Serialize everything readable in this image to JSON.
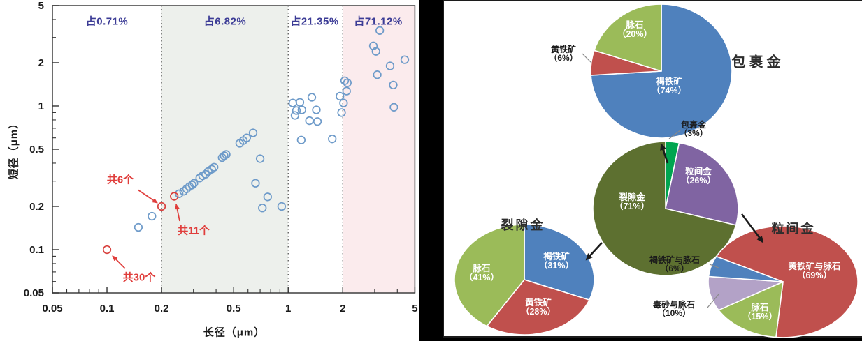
{
  "chart_data": [
    {
      "type": "scatter",
      "xlabel": "长径（μm）",
      "ylabel": "短径（μm）",
      "xscale": "log",
      "yscale": "log",
      "xlim": [
        0.05,
        5
      ],
      "ylim": [
        0.05,
        5
      ],
      "ticks": [
        0.05,
        0.1,
        0.2,
        0.5,
        1,
        2,
        5
      ],
      "tick_labels": [
        "0.05",
        "0.1",
        "0.2",
        "0.5",
        "1",
        "2",
        "5"
      ],
      "minor_ticks": [
        0.06,
        0.07,
        0.08,
        0.09,
        0.3,
        0.4,
        0.6,
        0.7,
        0.8,
        0.9,
        3,
        4
      ],
      "zone_boundaries": [
        0.2,
        1,
        2
      ],
      "zones": [
        {
          "label": "占0.71%",
          "x_range": [
            0.05,
            0.2
          ],
          "bg": "#ffffff"
        },
        {
          "label": "占6.82%",
          "x_range": [
            0.2,
            1
          ],
          "bg": "#edf0ec"
        },
        {
          "label": "占21.35%",
          "x_range": [
            1,
            2
          ],
          "bg": "#ffffff"
        },
        {
          "label": "占71.12%",
          "x_range": [
            2,
            5
          ],
          "bg": "#fbebed"
        }
      ],
      "zone_label_color": "#3c3c96",
      "series": [
        {
          "name": "blue-points",
          "color": "#6d9ac9",
          "points": [
            [
              0.149,
              0.143
            ],
            [
              0.177,
              0.171
            ],
            [
              0.25,
              0.245
            ],
            [
              0.265,
              0.255
            ],
            [
              0.275,
              0.265
            ],
            [
              0.285,
              0.275
            ],
            [
              0.295,
              0.282
            ],
            [
              0.302,
              0.29
            ],
            [
              0.325,
              0.315
            ],
            [
              0.337,
              0.327
            ],
            [
              0.35,
              0.335
            ],
            [
              0.362,
              0.35
            ],
            [
              0.378,
              0.363
            ],
            [
              0.39,
              0.375
            ],
            [
              0.432,
              0.437
            ],
            [
              0.443,
              0.45
            ],
            [
              0.455,
              0.46
            ],
            [
              0.54,
              0.55
            ],
            [
              0.565,
              0.575
            ],
            [
              0.59,
              0.6
            ],
            [
              0.64,
              0.65
            ],
            [
              0.66,
              0.29
            ],
            [
              0.7,
              0.43
            ],
            [
              0.72,
              0.195
            ],
            [
              0.77,
              0.233
            ],
            [
              0.92,
              0.2
            ],
            [
              1.06,
              1.05
            ],
            [
              1.16,
              1.06
            ],
            [
              1.35,
              1.15
            ],
            [
              1.11,
              0.93
            ],
            [
              1.19,
              0.94
            ],
            [
              1.09,
              0.86
            ],
            [
              1.43,
              0.94
            ],
            [
              1.31,
              0.79
            ],
            [
              1.45,
              0.78
            ],
            [
              1.18,
              0.58
            ],
            [
              1.75,
              0.59
            ],
            [
              1.93,
              1.17
            ],
            [
              1.97,
              0.9
            ],
            [
              2.02,
              1.05
            ],
            [
              2.1,
              1.27
            ],
            [
              2.12,
              1.45
            ],
            [
              2.05,
              1.5
            ],
            [
              3.2,
              3.35
            ],
            [
              2.95,
              2.62
            ],
            [
              3.05,
              2.4
            ],
            [
              4.4,
              2.1
            ],
            [
              3.65,
              1.9
            ],
            [
              3.1,
              1.65
            ],
            [
              3.8,
              1.4
            ],
            [
              3.83,
              0.98
            ]
          ]
        },
        {
          "name": "red-points",
          "color": "#d8413e",
          "points": [
            [
              0.1,
              0.1
            ],
            [
              0.2,
              0.2
            ],
            [
              0.235,
              0.235
            ]
          ]
        }
      ],
      "annotations": [
        {
          "text": "共6个",
          "points_to": [
            0.2,
            0.2
          ]
        },
        {
          "text": "共11个",
          "points_to": [
            0.235,
            0.235
          ]
        },
        {
          "text": "共30个",
          "points_to": [
            0.1,
            0.1
          ]
        }
      ],
      "annotation_color": "#e03e3c"
    },
    {
      "type": "pie",
      "id": "pie-top",
      "title": "包裹金",
      "start_angle": 0,
      "slices": [
        {
          "name": "褐铁矿",
          "pct": 74,
          "pct_label": "（74%）",
          "color": "#4f81bd"
        },
        {
          "name": "黄铁矿",
          "pct": 6,
          "pct_label": "（6%）",
          "color": "#c0504d"
        },
        {
          "name": "脉石",
          "pct": 20,
          "pct_label": "（20%）",
          "color": "#9bbb59"
        }
      ]
    },
    {
      "type": "pie",
      "id": "pie-center",
      "title": "",
      "start_angle": 0,
      "slices": [
        {
          "name": "包裹金",
          "pct": 3,
          "pct_label": "（3%）",
          "color": "#00a550"
        },
        {
          "name": "粒间金",
          "pct": 26,
          "pct_label": "（26%）",
          "color": "#8064a2"
        },
        {
          "name": "裂隙金",
          "pct": 71,
          "pct_label": "（71%）",
          "color": "#5d7030"
        }
      ]
    },
    {
      "type": "pie",
      "id": "pie-bottom-left",
      "title": "裂隙金",
      "start_angle": 0,
      "slices": [
        {
          "name": "褐铁矿",
          "pct": 31,
          "pct_label": "（31%）",
          "color": "#4f81bd"
        },
        {
          "name": "黄铁矿",
          "pct": 28,
          "pct_label": "（28%）",
          "color": "#c0504d"
        },
        {
          "name": "脉石",
          "pct": 41,
          "pct_label": "（41%）",
          "color": "#9bbb59"
        }
      ]
    },
    {
      "type": "pie",
      "id": "pie-bottom-right",
      "title": "粒间金",
      "start_angle": -63,
      "slices": [
        {
          "name": "黄铁矿与脉石",
          "pct": 69,
          "pct_label": "（69%）",
          "color": "#c0504d"
        },
        {
          "name": "脉石",
          "pct": 15,
          "pct_label": "（15%）",
          "color": "#9bbb59"
        },
        {
          "name": "毒砂与脉石",
          "pct": 10,
          "pct_label": "（10%）",
          "color": "#b3a2c7"
        },
        {
          "name": "褐铁矿与脉石",
          "pct": 6,
          "pct_label": "（6%）",
          "color": "#4f81bd"
        }
      ]
    }
  ]
}
